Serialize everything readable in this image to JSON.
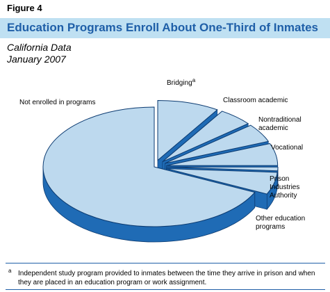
{
  "figure_label": "Figure 4",
  "title": "Education Programs Enroll About One-Third of Inmates",
  "subtitle_lines": [
    "California Data",
    "January 2007"
  ],
  "chart_data": {
    "type": "pie",
    "title": "Education Programs Enroll About One-Third of Inmates",
    "style": "3d-exploded",
    "colors": {
      "top": "#bdd9ee",
      "side": "#1f6bb5",
      "edge": "#0b3a70"
    },
    "slices": [
      {
        "label": "Not enrolled in programs",
        "label_lines": [
          "Not enrolled in programs"
        ],
        "value": 68,
        "exploded": false
      },
      {
        "label": "Other education programs",
        "label_lines": [
          "Other education",
          "programs"
        ],
        "value": 6,
        "exploded": true
      },
      {
        "label": "Prison Industries Authority",
        "label_lines": [
          "Prison",
          "Industries",
          "Authority"
        ],
        "value": 1,
        "exploded": true
      },
      {
        "label": "Vocational",
        "label_lines": [
          "Vocational"
        ],
        "value": 6,
        "exploded": true
      },
      {
        "label": "Nontraditional academic",
        "label_lines": [
          "Nontraditional",
          "academic"
        ],
        "value": 5,
        "exploded": true
      },
      {
        "label": "Classroom academic",
        "label_lines": [
          "Classroom academic"
        ],
        "value": 5,
        "exploded": true
      },
      {
        "label": "Bridging",
        "label_lines": [
          "Bridging"
        ],
        "superscript": "a",
        "value": 9,
        "exploded": true
      }
    ]
  },
  "footnote": {
    "marker": "a",
    "text": "Independent study program provided to inmates between the time they arrive in prison and when they are placed in an education program or work assignment."
  }
}
